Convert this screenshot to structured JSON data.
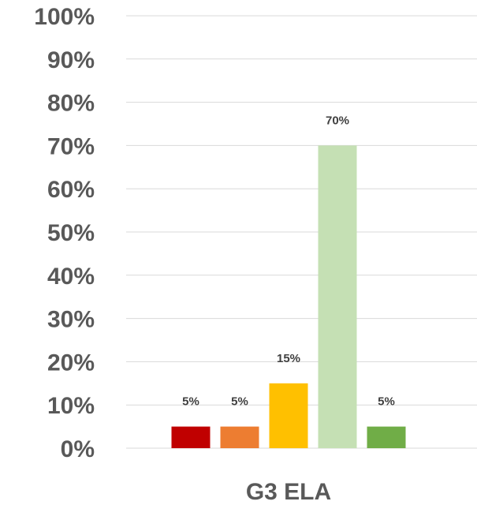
{
  "chart_data": {
    "type": "bar",
    "categories": [
      "",
      "",
      "",
      "",
      ""
    ],
    "values": [
      5,
      5,
      15,
      70,
      5
    ],
    "data_labels": [
      "5%",
      "5%",
      "15%",
      "70%",
      "5%"
    ],
    "colors": [
      "#c00000",
      "#ed7d31",
      "#ffc000",
      "#c5e0b4",
      "#70ad47"
    ],
    "xlabel": "G3 ELA",
    "ylabel": "",
    "ylim": [
      0,
      100
    ],
    "y_ticks": [
      0,
      10,
      20,
      30,
      40,
      50,
      60,
      70,
      80,
      90,
      100
    ],
    "y_tick_labels": [
      "0%",
      "10%",
      "20%",
      "30%",
      "40%",
      "50%",
      "60%",
      "70%",
      "80%",
      "90%",
      "100%"
    ],
    "grid": true,
    "gridline_color": "#d9d9d9",
    "legend": "none"
  }
}
